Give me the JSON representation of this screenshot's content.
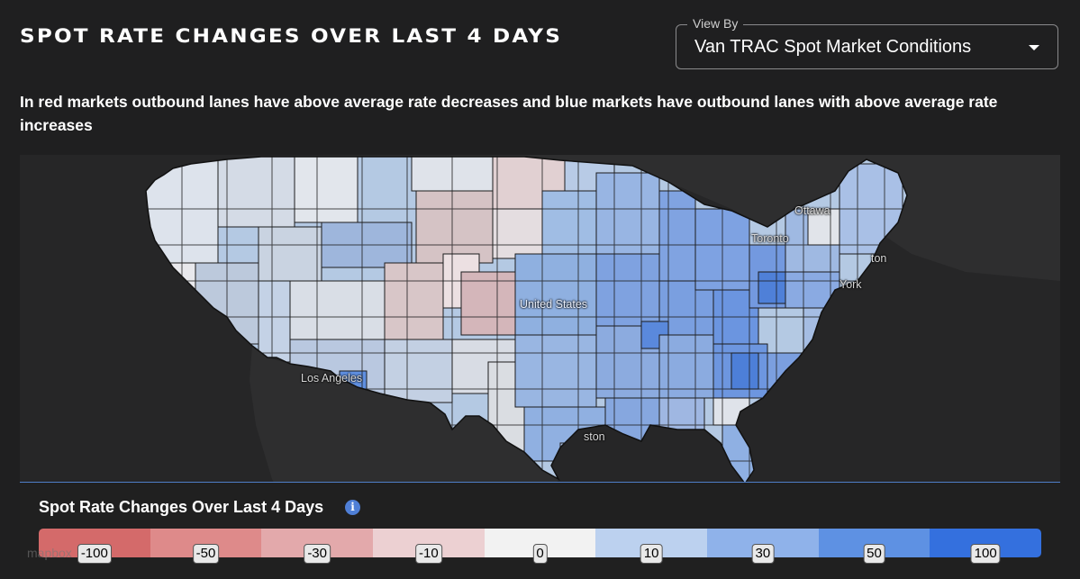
{
  "header": {
    "title": "SPOT RATE CHANGES OVER LAST 4 DAYS",
    "view_by_label": "View By",
    "view_by_value": "Van TRAC Spot Market Conditions"
  },
  "description": "In red markets outbound lanes have above average rate decreases and blue markets have outbound lanes with above average rate increases",
  "map": {
    "place_labels": {
      "ottawa": "Ottawa",
      "toronto": "Toronto",
      "boston": "ton",
      "new_york": "York",
      "united_states": "United States",
      "los_angeles": "Los Angeles",
      "houston": "ston"
    },
    "attribution": "mapbox"
  },
  "legend": {
    "title": "Spot Rate Changes Over Last 4 Days",
    "info_icon": "info-icon",
    "colors": [
      "#d46a6a",
      "#de8a8a",
      "#e3a9ab",
      "#ecd0d2",
      "#f2f2f2",
      "#bcd1ef",
      "#8fb2ea",
      "#5e91e3",
      "#3470de"
    ],
    "ticks": [
      "-100",
      "-50",
      "-30",
      "-10",
      "0",
      "10",
      "30",
      "50",
      "100"
    ]
  }
}
